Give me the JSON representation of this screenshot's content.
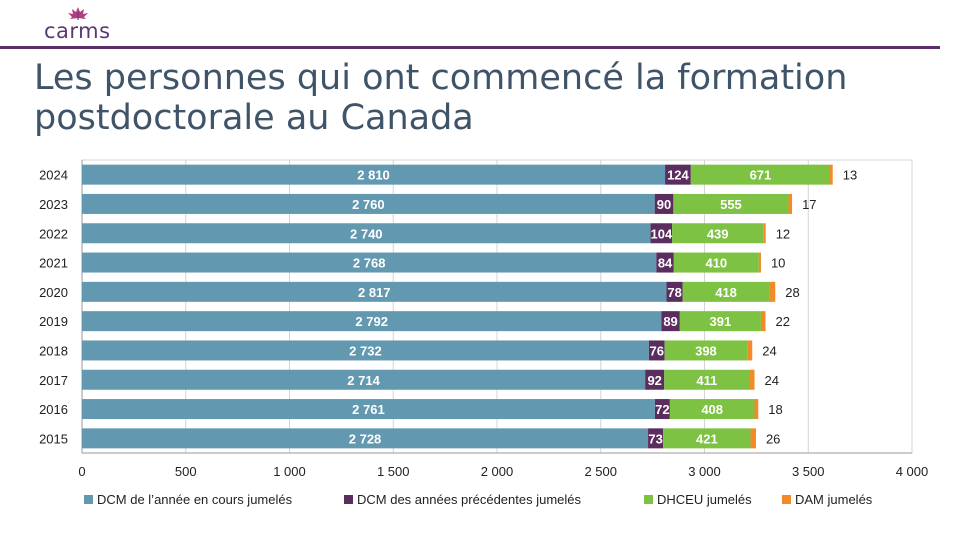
{
  "header": {
    "logo_text": "carms",
    "title": "Les personnes qui ont commencé la formation postdoctorale au Canada"
  },
  "colors": {
    "dcm_current": "#6399b0",
    "dcm_previous": "#5b2d5e",
    "dhceu": "#7dc242",
    "dam": "#f28a28",
    "rule": "#5b2d6b",
    "title": "#3f5468"
  },
  "chart_data": {
    "type": "bar",
    "orientation": "horizontal",
    "stacked": true,
    "categories": [
      "2024",
      "2023",
      "2022",
      "2021",
      "2020",
      "2019",
      "2018",
      "2017",
      "2016",
      "2015"
    ],
    "series": [
      {
        "name": "DCM de l’année en cours jumelés",
        "values": [
          2810,
          2760,
          2740,
          2768,
          2817,
          2792,
          2732,
          2714,
          2761,
          2728
        ],
        "labels": [
          "2 810",
          "2 760",
          "2 740",
          "2 768",
          "2 817",
          "2 792",
          "2 732",
          "2 714",
          "2 761",
          "2 728"
        ]
      },
      {
        "name": "DCM des années précédentes jumelés",
        "values": [
          124,
          90,
          104,
          84,
          78,
          89,
          76,
          92,
          72,
          73
        ],
        "labels": [
          "124",
          "90",
          "104",
          "84",
          "78",
          "89",
          "76",
          "92",
          "72",
          "73"
        ]
      },
      {
        "name": "DHCEU jumelés",
        "values": [
          671,
          555,
          439,
          410,
          418,
          391,
          398,
          411,
          408,
          421
        ],
        "labels": [
          "671",
          "555",
          "439",
          "410",
          "418",
          "391",
          "398",
          "411",
          "408",
          "421"
        ]
      },
      {
        "name": "DAM jumelés",
        "values": [
          13,
          17,
          12,
          10,
          28,
          22,
          24,
          24,
          18,
          26
        ],
        "labels": [
          "13",
          "17",
          "12",
          "10",
          "28",
          "22",
          "24",
          "24",
          "18",
          "26"
        ]
      }
    ],
    "xlim": [
      0,
      4000
    ],
    "xticks": [
      0,
      500,
      1000,
      1500,
      2000,
      2500,
      3000,
      3500,
      4000
    ],
    "xtick_labels": [
      "0",
      "500",
      "1 000",
      "1 500",
      "2 000",
      "2 500",
      "3 000",
      "3 500",
      "4 000"
    ],
    "grid": true,
    "legend_position": "bottom"
  }
}
